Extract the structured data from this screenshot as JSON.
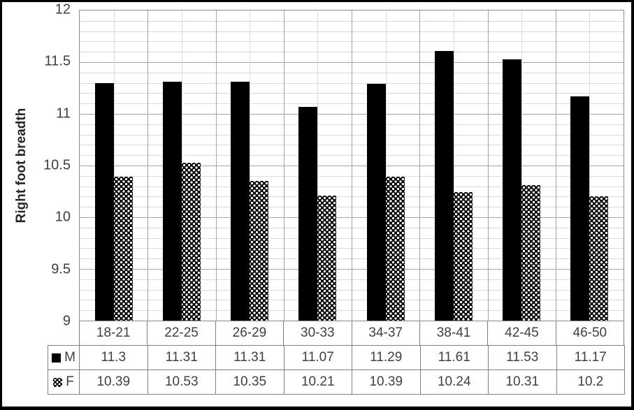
{
  "chart_data": {
    "type": "bar",
    "title": "",
    "ylabel": "Right foot breadth",
    "xlabel": "",
    "categories": [
      "18-21",
      "22-25",
      "26-29",
      "30-33",
      "34-37",
      "38-41",
      "42-45",
      "46-50"
    ],
    "series": [
      {
        "name": "M",
        "fill": "solid-black",
        "values": [
          11.3,
          11.31,
          11.31,
          11.07,
          11.29,
          11.61,
          11.53,
          11.17
        ]
      },
      {
        "name": "F",
        "fill": "dotted-black-pattern",
        "values": [
          10.39,
          10.53,
          10.35,
          10.21,
          10.39,
          10.24,
          10.31,
          10.2
        ]
      }
    ],
    "ylim": [
      9,
      12
    ],
    "y_major_step": 0.5,
    "y_minor_step": 0.1,
    "y_tick_labels": [
      "12",
      "11.5",
      "11",
      "10.5",
      "10",
      "9.5",
      "9"
    ],
    "grid": "both-major-and-minor",
    "legend_position": "data-table-left-column",
    "data_table_shown": true
  },
  "colors": {
    "bar_fill": "#000000",
    "grid_minor": "#d9d9d9",
    "grid_major": "#a6a6a6",
    "plot_border": "#8c8c8c",
    "table_border": "#808080",
    "text": "#404040",
    "figure_border": "#000000",
    "background": "#ffffff"
  }
}
